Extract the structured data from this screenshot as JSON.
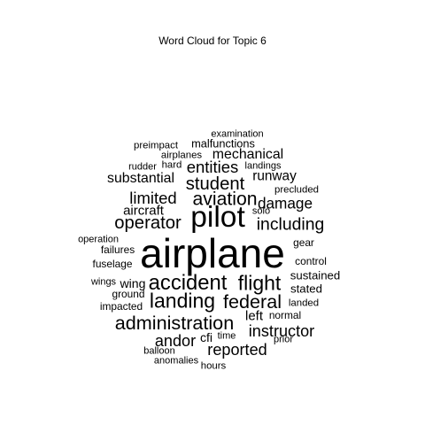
{
  "chart_data": {
    "type": "wordcloud",
    "title": "Word Cloud for Topic 6",
    "words": [
      {
        "text": "airplane",
        "weight": 100
      },
      {
        "text": "pilot",
        "weight": 72
      },
      {
        "text": "accident",
        "weight": 50
      },
      {
        "text": "flight",
        "weight": 48
      },
      {
        "text": "landing",
        "weight": 48
      },
      {
        "text": "federal",
        "weight": 45
      },
      {
        "text": "administration",
        "weight": 45
      },
      {
        "text": "aviation",
        "weight": 44
      },
      {
        "text": "operator",
        "weight": 42
      },
      {
        "text": "student",
        "weight": 42
      },
      {
        "text": "including",
        "weight": 40
      },
      {
        "text": "limited",
        "weight": 38
      },
      {
        "text": "entities",
        "weight": 38
      },
      {
        "text": "instructor",
        "weight": 37
      },
      {
        "text": "andor",
        "weight": 37
      },
      {
        "text": "reported",
        "weight": 37
      },
      {
        "text": "damage",
        "weight": 35
      },
      {
        "text": "mechanical",
        "weight": 32
      },
      {
        "text": "substantial",
        "weight": 32
      },
      {
        "text": "runway",
        "weight": 31
      },
      {
        "text": "aircraft",
        "weight": 30
      },
      {
        "text": "left",
        "weight": 30
      },
      {
        "text": "wing",
        "weight": 28
      },
      {
        "text": "cfi",
        "weight": 28
      },
      {
        "text": "sustained",
        "weight": 26
      },
      {
        "text": "stated",
        "weight": 26
      },
      {
        "text": "malfunctions",
        "weight": 25
      },
      {
        "text": "control",
        "weight": 23
      },
      {
        "text": "gear",
        "weight": 23
      },
      {
        "text": "normal",
        "weight": 23
      },
      {
        "text": "fuselage",
        "weight": 23
      },
      {
        "text": "failures",
        "weight": 23
      },
      {
        "text": "ground",
        "weight": 23
      },
      {
        "text": "impacted",
        "weight": 23
      },
      {
        "text": "hours",
        "weight": 22
      },
      {
        "text": "precluded",
        "weight": 22
      },
      {
        "text": "landed",
        "weight": 22
      },
      {
        "text": "airplanes",
        "weight": 22
      },
      {
        "text": "hard",
        "weight": 22
      },
      {
        "text": "preimpact",
        "weight": 22
      },
      {
        "text": "rudder",
        "weight": 21
      },
      {
        "text": "examination",
        "weight": 21
      },
      {
        "text": "landings",
        "weight": 21
      },
      {
        "text": "operation",
        "weight": 21
      },
      {
        "text": "solo",
        "weight": 21
      },
      {
        "text": "wings",
        "weight": 21
      },
      {
        "text": "time",
        "weight": 21
      },
      {
        "text": "prior",
        "weight": 21
      },
      {
        "text": "balloon",
        "weight": 21
      },
      {
        "text": "anomalies",
        "weight": 21
      }
    ]
  }
}
